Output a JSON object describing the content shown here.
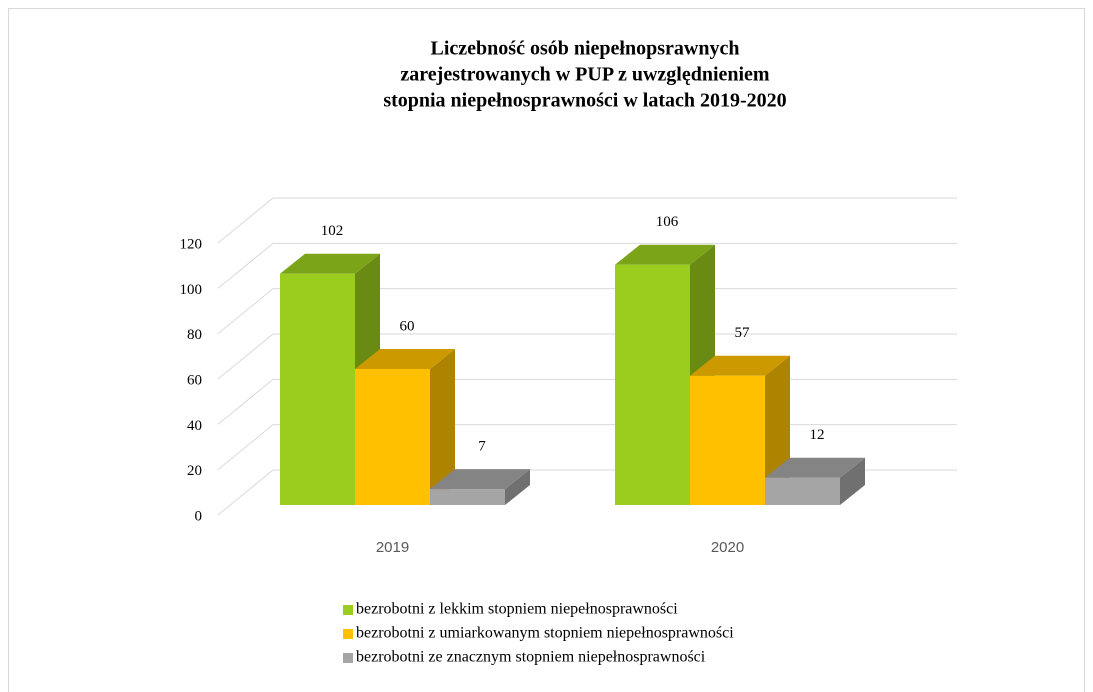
{
  "chart_data": {
    "type": "bar3d",
    "title": [
      "Liczebność osób niepełnopsrawnych",
      "zarejestrowanych  w PUP z uwzględnieniem",
      "stopnia niepełnosprawności w latach 2019-2020"
    ],
    "categories": [
      "2019",
      "2020"
    ],
    "series": [
      {
        "name": "bezrobotni z lekkim stopniem niepełnosprawności",
        "color": "#9acd1e",
        "values": [
          102,
          106
        ]
      },
      {
        "name": "bezrobotni z umiarkowanym stopniem niepełnosprawności",
        "color": "#ffc000",
        "values": [
          60,
          57
        ]
      },
      {
        "name": "bezrobotni ze znacznym stopniem niepełnosprawności",
        "color": "#a5a5a5",
        "values": [
          7,
          12
        ]
      }
    ],
    "ylim": [
      0,
      120
    ],
    "yticks": [
      0,
      20,
      40,
      60,
      80,
      100,
      120
    ],
    "grid": true,
    "legend": "bottom"
  }
}
